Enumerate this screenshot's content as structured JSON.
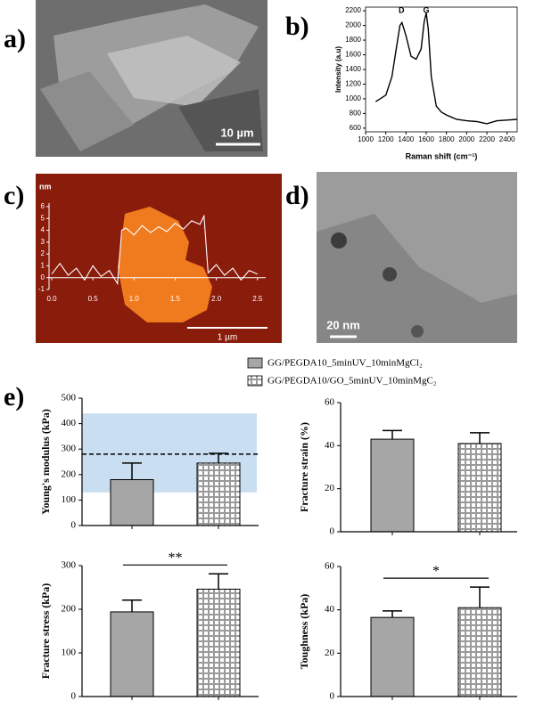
{
  "panels": {
    "labels": [
      "a)",
      "b)",
      "c)",
      "d)",
      "e)"
    ],
    "scale_bars": [
      "10 µm",
      "1 µm",
      "20 nm"
    ]
  },
  "legend": {
    "entries": [
      {
        "name": "GG/PEGDA10_5minUV_10minMgCl₂",
        "color": "#a6a6a6",
        "hatch": false
      },
      {
        "name": "GG/PEGDA10/GO_5minUV_10minMgC₂",
        "color": "#a6a6a6",
        "hatch": true
      }
    ]
  },
  "chart_data": [
    {
      "type": "line",
      "xlabel": "Raman shift (cm⁻¹)",
      "ylabel": "Intensity (a.u)",
      "color": "#000000",
      "annotations": [
        "D",
        "G"
      ],
      "x": [
        1100,
        1200,
        1260,
        1300,
        1340,
        1360,
        1400,
        1450,
        1500,
        1550,
        1580,
        1600,
        1620,
        1650,
        1700,
        1750,
        1800,
        1900,
        2000,
        2100,
        2200,
        2300,
        2400,
        2500
      ],
      "values": [
        960,
        1050,
        1300,
        1650,
        2000,
        2040,
        1860,
        1580,
        1540,
        1680,
        2050,
        2170,
        1950,
        1300,
        900,
        820,
        780,
        720,
        700,
        690,
        660,
        700,
        710,
        720
      ],
      "xlim": [
        1000,
        2500
      ],
      "xticks": [
        1000,
        1200,
        1400,
        1600,
        1800,
        2000,
        2200,
        2400
      ],
      "ylim": [
        550,
        2250
      ],
      "yticks": [
        600,
        800,
        1000,
        1200,
        1400,
        1600,
        1800,
        2000,
        2200
      ]
    },
    {
      "type": "line",
      "ylabel": "nm",
      "color": "#ffffff",
      "x": [
        0,
        0.1,
        0.2,
        0.3,
        0.4,
        0.5,
        0.6,
        0.7,
        0.8,
        0.85,
        0.9,
        1.0,
        1.1,
        1.2,
        1.3,
        1.4,
        1.5,
        1.6,
        1.7,
        1.8,
        1.85,
        1.9,
        2.0,
        2.1,
        2.2,
        2.3,
        2.4,
        2.5
      ],
      "values": [
        0.3,
        1.2,
        0.2,
        0.8,
        -0.2,
        1.0,
        0.1,
        0.6,
        -0.5,
        4.0,
        4.2,
        3.6,
        4.4,
        3.8,
        4.3,
        3.9,
        4.6,
        4.1,
        4.8,
        4.5,
        5.2,
        0.4,
        1.1,
        0.2,
        0.8,
        -0.2,
        0.6,
        0.3
      ],
      "xlim": [
        0,
        2.6
      ],
      "xticks": [
        {
          "value": 0,
          "label": "0.0"
        },
        0.5,
        {
          "value": 1,
          "label": "1.0"
        },
        1.5,
        {
          "value": 2,
          "label": "2.0"
        },
        2.5
      ],
      "ylim": [
        -1,
        6.3
      ],
      "yticks": [
        -1,
        0,
        1,
        2,
        3,
        4,
        5,
        6
      ]
    },
    {
      "type": "bar",
      "ylabel": "Young's modulus (kPa)",
      "values": [
        180,
        245
      ],
      "errors": [
        65,
        38
      ],
      "reference_band": [
        130,
        440
      ],
      "reference_line": 280,
      "ylim": [
        0,
        500
      ],
      "yticks": [
        0,
        100,
        200,
        300,
        400,
        500
      ]
    },
    {
      "type": "bar",
      "ylabel": "Fracture strain (%)",
      "values": [
        43,
        41
      ],
      "errors": [
        4,
        5
      ],
      "ylim": [
        0,
        60
      ],
      "yticks": [
        0,
        20,
        40,
        60
      ]
    },
    {
      "type": "bar",
      "ylabel": "Fracture stress (kPa)",
      "values": [
        194,
        246
      ],
      "errors": [
        27,
        35
      ],
      "significance": "**",
      "ylim": [
        0,
        300
      ],
      "yticks": [
        0,
        100,
        200,
        300
      ]
    },
    {
      "type": "bar",
      "ylabel": "Toughness (kPa)",
      "values": [
        36.5,
        41
      ],
      "errors": [
        3,
        9.5
      ],
      "significance": "*",
      "ylim": [
        0,
        60
      ],
      "yticks": [
        0,
        20,
        40,
        60
      ]
    }
  ]
}
